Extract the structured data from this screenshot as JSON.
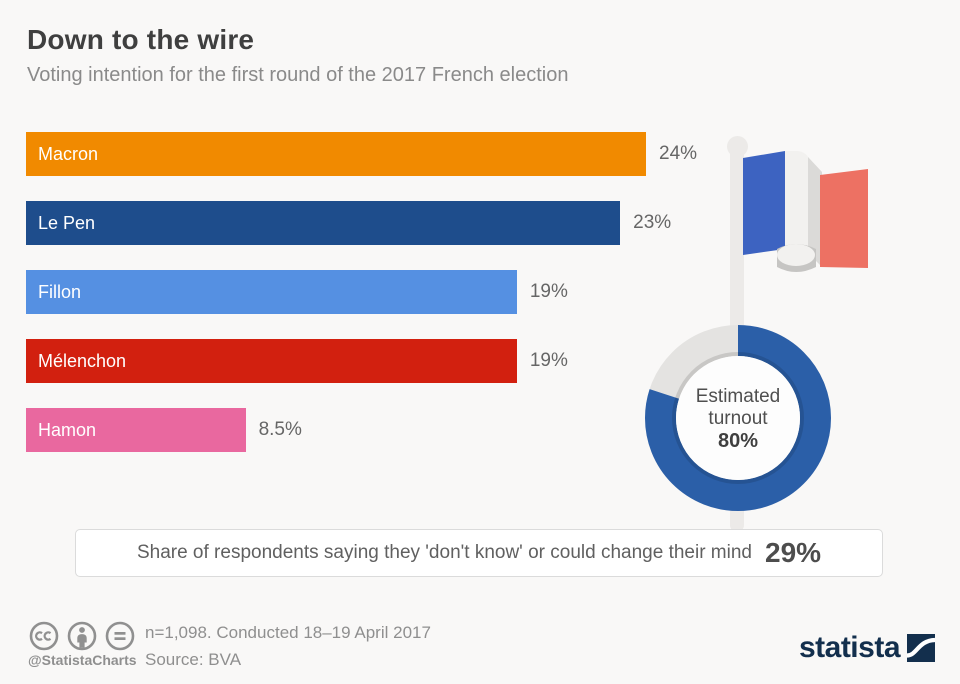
{
  "header": {
    "title": "Down to the wire",
    "subtitle": "Voting intention for the first round of the 2017 French election"
  },
  "chart_data": [
    {
      "type": "bar",
      "orientation": "horizontal",
      "categories": [
        "Macron",
        "Le Pen",
        "Fillon",
        "Mélenchon",
        "Hamon"
      ],
      "values": [
        24,
        23,
        19,
        19,
        8.5
      ],
      "value_labels": [
        "24%",
        "23%",
        "19%",
        "19%",
        "8.5%"
      ],
      "bar_colors": [
        "#f18a00",
        "#1e4d8c",
        "#5590e2",
        "#d2200f",
        "#e9689f"
      ],
      "title": "Voting intention for the first round of the 2017 French election",
      "xlabel": "",
      "ylabel": "",
      "xlim": [
        0,
        24
      ],
      "grid": false,
      "legend": "none",
      "value_label_position": "right-of-bar"
    },
    {
      "type": "pie",
      "subtype": "donut",
      "label_line1": "Estimated",
      "label_line2": "turnout",
      "value_label": "80%",
      "percent": 80,
      "remainder_percent": 20,
      "color": "#2b5fa8",
      "track_color": "#e4e3e1",
      "start_angle": "top-clockwise"
    }
  ],
  "flag": {
    "name": "french-flag",
    "blue": "#3d63c1",
    "white": "#f2f1ef",
    "shade": "#dbdad8",
    "red": "#ed7163",
    "pole_color": "#eceae8"
  },
  "callout": {
    "text": "Share of respondents saying they 'don't know' or could change their mind",
    "value": "29%"
  },
  "footer": {
    "handle": "@StatistaCharts",
    "note_line1": "n=1,098. Conducted 18–19 April 2017",
    "note_line2": "Source: BVA",
    "brand": "statista",
    "brand_color": "#132f4d",
    "icon_color": "#909090"
  }
}
